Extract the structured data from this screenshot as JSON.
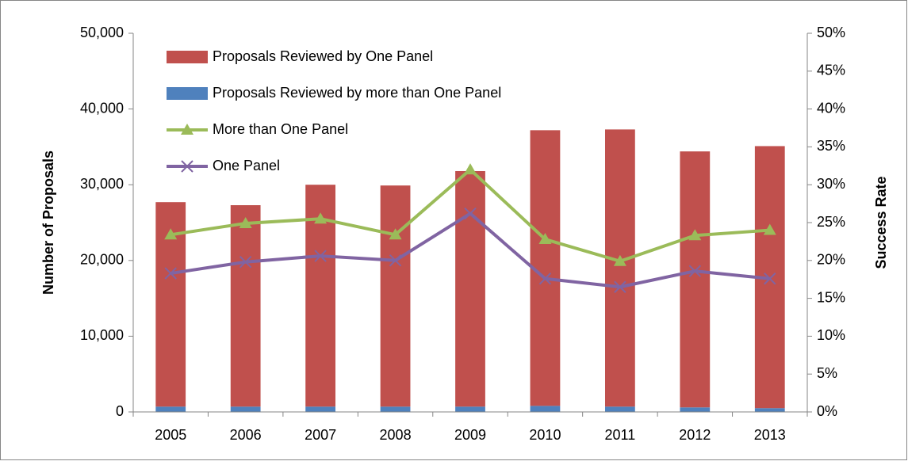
{
  "chart_data": {
    "type": "combo",
    "y_label": "Number of Proposals",
    "y2_label": "Success Rate",
    "categories": [
      "2005",
      "2006",
      "2007",
      "2008",
      "2009",
      "2010",
      "2011",
      "2012",
      "2013"
    ],
    "series": [
      {
        "name": "Proposals Reviewed by One Panel",
        "type": "bar",
        "color": "#c0504d",
        "values": [
          27000,
          26600,
          29300,
          29200,
          31100,
          36400,
          36600,
          33800,
          34600
        ]
      },
      {
        "name": "Proposals Reviewed by more than One Panel",
        "type": "bar",
        "color": "#4f81bd",
        "values": [
          700,
          700,
          700,
          700,
          700,
          800,
          700,
          600,
          500
        ]
      },
      {
        "name": "More than One Panel",
        "type": "line",
        "axis": "y2",
        "marker": "triangle",
        "color": "#9bbb59",
        "values": [
          23.4,
          24.9,
          25.5,
          23.4,
          32.0,
          22.8,
          19.9,
          23.3,
          24.0
        ]
      },
      {
        "name": "One Panel",
        "type": "line",
        "axis": "y2",
        "marker": "x",
        "color": "#8064a2",
        "values": [
          18.3,
          19.8,
          20.6,
          20.0,
          26.2,
          17.6,
          16.5,
          18.6,
          17.6
        ]
      }
    ],
    "stacked": true,
    "ylim": [
      0,
      50000
    ],
    "yticks": [
      0,
      {
        "value": 10000,
        "label": "10,000"
      },
      {
        "value": 20000,
        "label": "20,000"
      },
      {
        "value": 30000,
        "label": "30,000"
      },
      {
        "value": 40000,
        "label": "40,000"
      },
      {
        "value": 50000,
        "label": "50,000"
      }
    ],
    "y2lim": [
      0,
      50
    ],
    "y2ticks": [
      {
        "value": 0,
        "label": "0%"
      },
      {
        "value": 5,
        "label": "5%"
      },
      {
        "value": 10,
        "label": "10%"
      },
      {
        "value": 15,
        "label": "15%"
      },
      {
        "value": 20,
        "label": "20%"
      },
      {
        "value": 25,
        "label": "25%"
      },
      {
        "value": 30,
        "label": "30%"
      },
      {
        "value": 35,
        "label": "35%"
      },
      {
        "value": 40,
        "label": "40%"
      },
      {
        "value": 45,
        "label": "45%"
      },
      {
        "value": 50,
        "label": "50%"
      }
    ],
    "grid": false,
    "legend": "upper-left"
  }
}
